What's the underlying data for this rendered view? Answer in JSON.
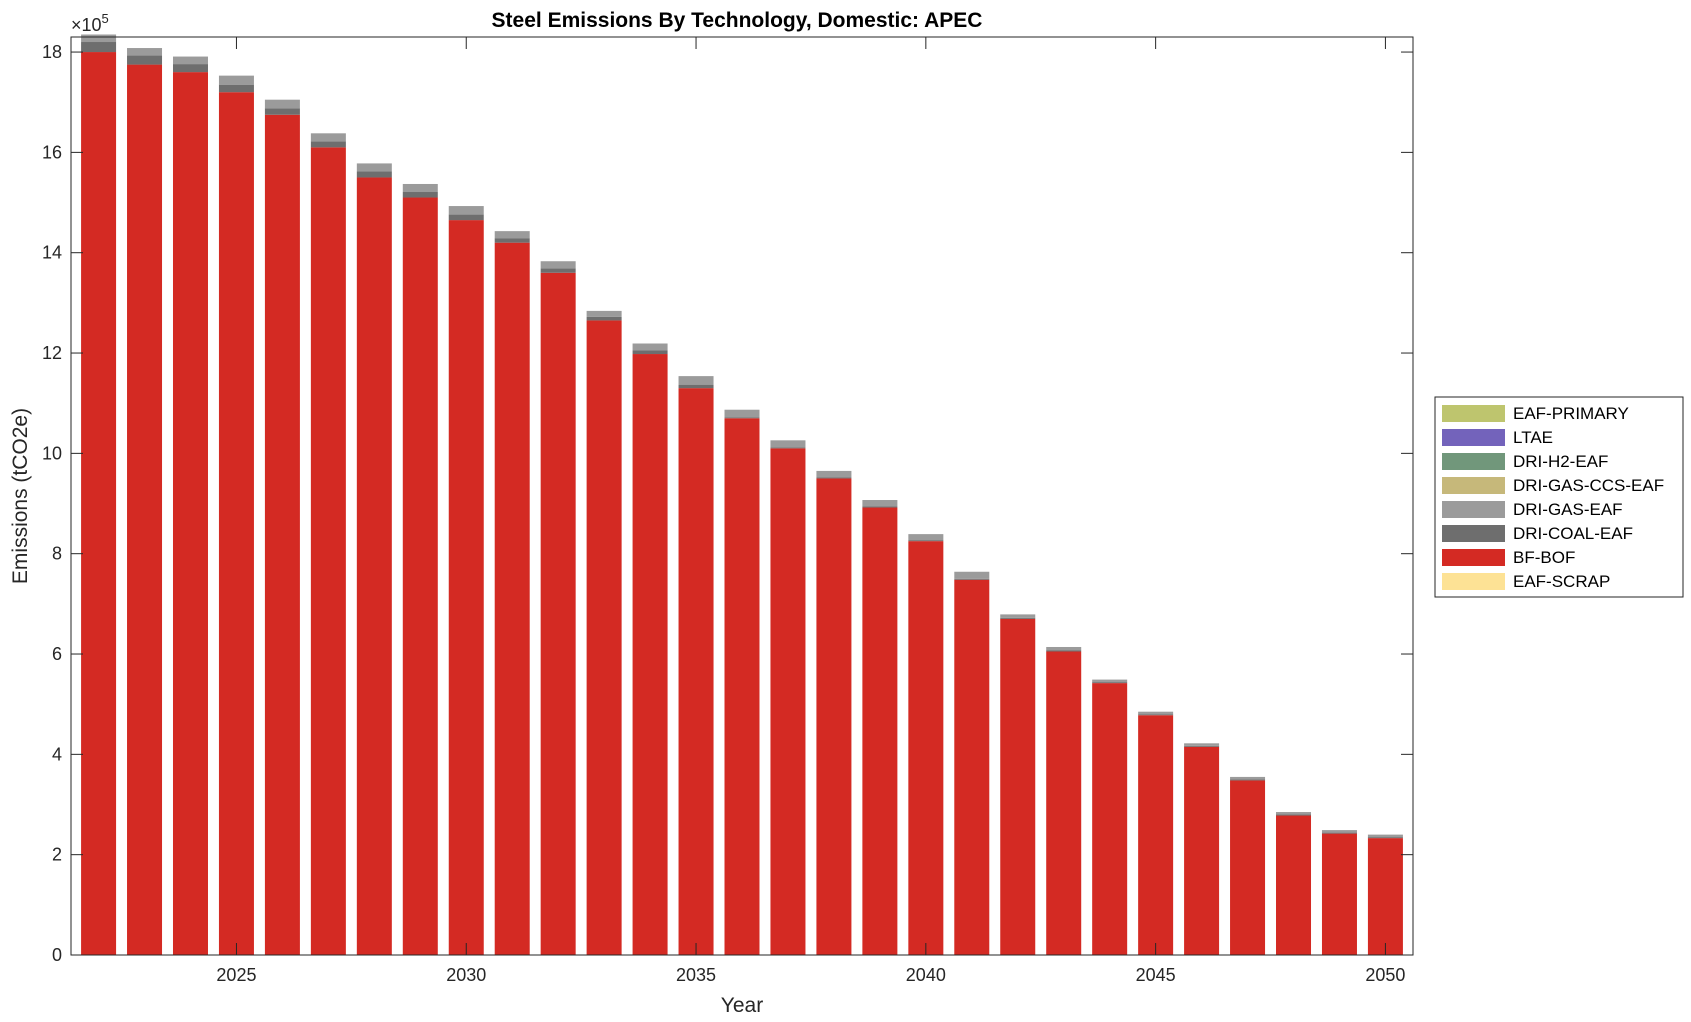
{
  "chart_data": {
    "type": "bar",
    "stacked": true,
    "title": "Steel Emissions By Technology, Domestic: APEC",
    "xlabel": "Year",
    "ylabel": "Emissions (tCO2e)",
    "y_exponent_label": "×10",
    "y_exponent_power": "5",
    "x": [
      2022,
      2023,
      2024,
      2025,
      2026,
      2027,
      2028,
      2029,
      2030,
      2031,
      2032,
      2033,
      2034,
      2035,
      2036,
      2037,
      2038,
      2039,
      2040,
      2041,
      2042,
      2043,
      2044,
      2045,
      2046,
      2047,
      2048,
      2049,
      2050
    ],
    "xticks": [
      2025,
      2030,
      2035,
      2040,
      2045,
      2050
    ],
    "xtick_labels": [
      "2025",
      "2030",
      "2035",
      "2040",
      "2045",
      "2050"
    ],
    "xlim": [
      2021.4,
      2050.6
    ],
    "yticks": [
      0,
      2,
      4,
      6,
      8,
      10,
      12,
      14,
      16,
      18
    ],
    "ytick_labels": [
      "0",
      "2",
      "4",
      "6",
      "8",
      "10",
      "12",
      "14",
      "16",
      "18"
    ],
    "ylim": [
      0,
      18.3
    ],
    "y_units": "×10^5 tCO2e",
    "legend_position": "outside-right",
    "grid": false,
    "series": [
      {
        "name": "EAF-SCRAP",
        "color": "#fde295",
        "values": [
          0,
          0,
          0,
          0,
          0,
          0,
          0,
          0,
          0,
          0,
          0,
          0,
          0,
          0,
          0,
          0,
          0,
          0,
          0,
          0,
          0,
          0,
          0,
          0,
          0,
          0,
          0,
          0,
          0
        ]
      },
      {
        "name": "BF-BOF",
        "color": "#d42a23",
        "values": [
          18.0,
          17.75,
          17.6,
          17.2,
          16.75,
          16.1,
          15.5,
          15.1,
          14.65,
          14.2,
          13.6,
          12.65,
          11.98,
          11.3,
          10.7,
          10.1,
          9.5,
          8.92,
          8.25,
          7.48,
          6.7,
          6.05,
          5.42,
          4.78,
          4.15,
          3.48,
          2.78,
          2.42,
          2.33
        ]
      },
      {
        "name": "DRI-COAL-EAF",
        "color": "#6e6e6e",
        "values": [
          0.2,
          0.18,
          0.16,
          0.15,
          0.13,
          0.12,
          0.12,
          0.11,
          0.11,
          0.09,
          0.09,
          0.07,
          0.07,
          0.07,
          0.02,
          0.02,
          0.02,
          0.02,
          0.02,
          0.02,
          0.02,
          0.02,
          0.02,
          0.02,
          0.02,
          0.02,
          0.02,
          0.02,
          0.02
        ]
      },
      {
        "name": "DRI-GAS-EAF",
        "color": "#9b9b9b",
        "values": [
          0.15,
          0.15,
          0.15,
          0.18,
          0.17,
          0.16,
          0.16,
          0.16,
          0.17,
          0.14,
          0.14,
          0.12,
          0.14,
          0.17,
          0.15,
          0.14,
          0.13,
          0.13,
          0.12,
          0.14,
          0.07,
          0.07,
          0.05,
          0.05,
          0.05,
          0.05,
          0.05,
          0.05,
          0.05
        ]
      },
      {
        "name": "DRI-GAS-CCS-EAF",
        "color": "#c6b87a",
        "values": [
          0,
          0,
          0,
          0,
          0,
          0,
          0,
          0,
          0,
          0,
          0,
          0,
          0,
          0,
          0,
          0,
          0,
          0,
          0,
          0,
          0,
          0,
          0,
          0,
          0,
          0,
          0,
          0,
          0
        ]
      },
      {
        "name": "DRI-H2-EAF",
        "color": "#71977b",
        "values": [
          0,
          0,
          0,
          0,
          0,
          0,
          0,
          0,
          0,
          0,
          0,
          0,
          0,
          0,
          0,
          0,
          0,
          0,
          0,
          0,
          0,
          0,
          0,
          0,
          0,
          0,
          0,
          0,
          0
        ]
      },
      {
        "name": "LTAE",
        "color": "#7363bb",
        "values": [
          0,
          0,
          0,
          0,
          0,
          0,
          0,
          0,
          0,
          0,
          0,
          0,
          0,
          0,
          0,
          0,
          0,
          0,
          0,
          0,
          0,
          0,
          0,
          0,
          0,
          0,
          0,
          0,
          0
        ]
      },
      {
        "name": "EAF-PRIMARY",
        "color": "#bec56e",
        "values": [
          0,
          0,
          0,
          0,
          0,
          0,
          0,
          0,
          0,
          0,
          0,
          0,
          0,
          0,
          0,
          0,
          0,
          0,
          0,
          0,
          0,
          0,
          0,
          0,
          0,
          0,
          0,
          0,
          0
        ]
      }
    ],
    "legend_order": [
      "EAF-PRIMARY",
      "LTAE",
      "DRI-H2-EAF",
      "DRI-GAS-CCS-EAF",
      "DRI-GAS-EAF",
      "DRI-COAL-EAF",
      "BF-BOF",
      "EAF-SCRAP"
    ]
  }
}
